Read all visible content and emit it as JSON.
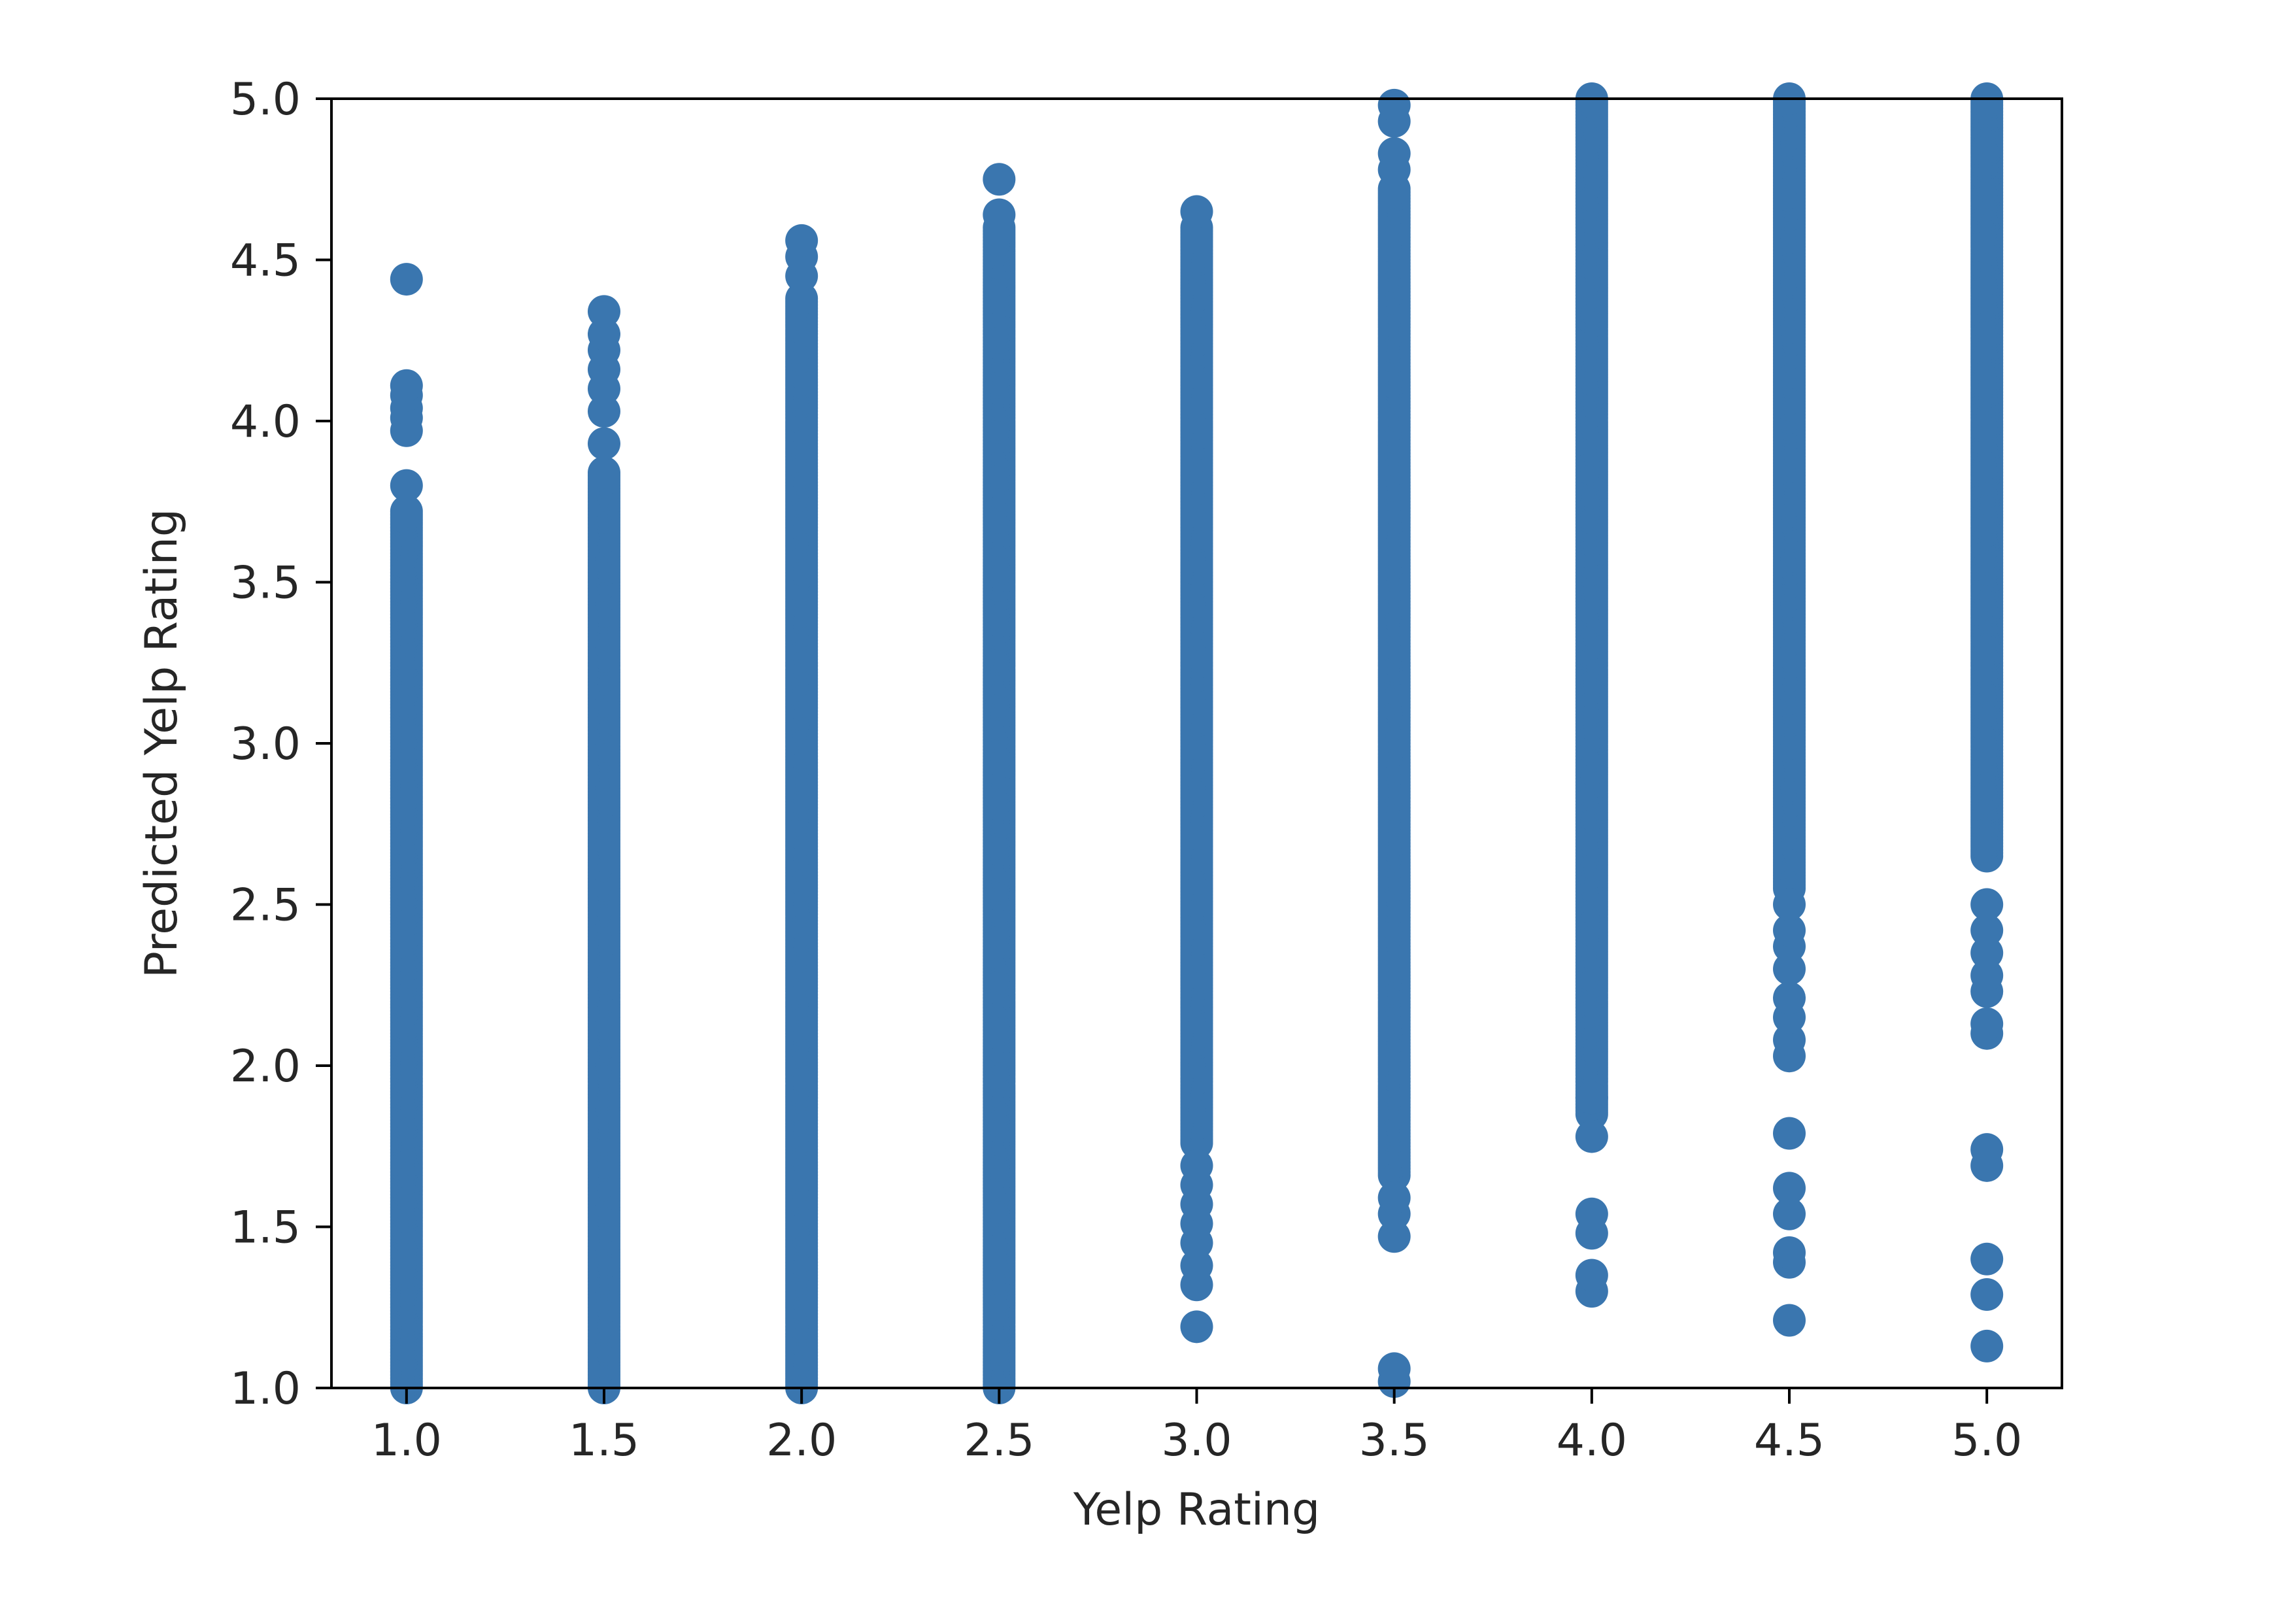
{
  "chart_data": {
    "type": "scatter",
    "title": "",
    "xlabel": "Yelp Rating",
    "ylabel": "Predicted Yelp Rating",
    "xlim": [
      0.81,
      5.19
    ],
    "ylim": [
      1.0,
      5.0
    ],
    "xticks": [
      "1.0",
      "1.5",
      "2.0",
      "2.5",
      "3.0",
      "3.5",
      "4.0",
      "4.5",
      "5.0"
    ],
    "yticks": [
      "1.0",
      "1.5",
      "2.0",
      "2.5",
      "3.0",
      "3.5",
      "4.0",
      "4.5",
      "5.0"
    ],
    "grid": false,
    "legend": "none",
    "marker_color": "#3a76af",
    "series": [
      {
        "columns": [
          {
            "x": 1.0,
            "y_range": [
              1.0,
              3.72
            ],
            "outliers": [
              3.8,
              3.97,
              4.01,
              4.04,
              4.08,
              4.11,
              4.44
            ]
          },
          {
            "x": 1.5,
            "y_range": [
              1.0,
              3.84
            ],
            "outliers": [
              3.93,
              4.03,
              4.1,
              4.16,
              4.22,
              4.27,
              4.34
            ]
          },
          {
            "x": 2.0,
            "y_range": [
              1.0,
              4.38
            ],
            "outliers": [
              4.45,
              4.51,
              4.56
            ]
          },
          {
            "x": 2.5,
            "y_range": [
              1.0,
              4.6
            ],
            "outliers": [
              4.64,
              4.75
            ]
          },
          {
            "x": 3.0,
            "y_range": [
              1.76,
              4.6
            ],
            "outliers": [
              1.19,
              1.32,
              1.38,
              1.45,
              1.51,
              1.57,
              1.63,
              1.69,
              4.65
            ]
          },
          {
            "x": 3.5,
            "y_range": [
              1.66,
              4.72
            ],
            "outliers": [
              1.02,
              1.06,
              1.47,
              1.54,
              1.59,
              4.78,
              4.83,
              4.93,
              4.98
            ]
          },
          {
            "x": 4.0,
            "y_range": [
              1.85,
              5.0
            ],
            "outliers": [
              1.3,
              1.35,
              1.48,
              1.54,
              1.78,
              1.9
            ]
          },
          {
            "x": 4.5,
            "y_range": [
              2.55,
              5.0
            ],
            "outliers": [
              1.21,
              1.39,
              1.42,
              1.54,
              1.62,
              1.79,
              2.03,
              2.08,
              2.15,
              2.21,
              2.3,
              2.37,
              2.42,
              2.5
            ]
          },
          {
            "x": 5.0,
            "y_range": [
              2.65,
              5.0
            ],
            "outliers": [
              1.13,
              1.29,
              1.4,
              1.69,
              1.74,
              2.1,
              2.13,
              2.23,
              2.28,
              2.35,
              2.42,
              2.5
            ]
          }
        ]
      }
    ]
  }
}
